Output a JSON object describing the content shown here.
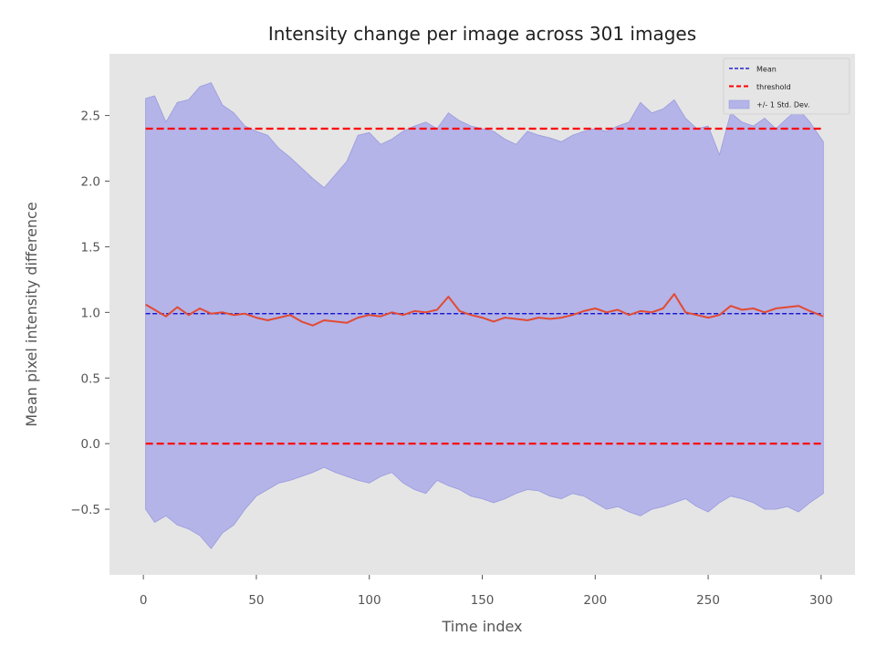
{
  "chart_data": {
    "type": "line",
    "title": "Intensity change per image across 301 images",
    "xlabel": "Time index",
    "ylabel": "Mean pixel intensity difference",
    "xlim": [
      -15,
      315
    ],
    "ylim": [
      -1.0,
      2.97
    ],
    "x_ticks": [
      0,
      50,
      100,
      150,
      200,
      250,
      300
    ],
    "y_ticks": [
      -0.5,
      0.0,
      0.5,
      1.0,
      1.5,
      2.0,
      2.5
    ],
    "x_tick_labels": [
      "0",
      "50",
      "100",
      "150",
      "200",
      "250",
      "300"
    ],
    "y_tick_labels": [
      "−0.5",
      "0.0",
      "0.5",
      "1.0",
      "1.5",
      "2.0",
      "2.5"
    ],
    "grid": false,
    "legend_position": "top-right",
    "legend": [
      {
        "label": "Mean",
        "style": "dashed-line",
        "color": "#0000cc"
      },
      {
        "label": "threshold",
        "style": "dashed-line",
        "color": "#ff0000"
      },
      {
        "label": "+/- 1 Std. Dev.",
        "style": "patch",
        "color": "#b4b4e8"
      }
    ],
    "mean": 0.99,
    "thresholds": [
      2.4,
      0.0
    ],
    "series": {
      "x": [
        1,
        5,
        10,
        15,
        20,
        25,
        30,
        35,
        40,
        45,
        50,
        55,
        60,
        65,
        70,
        75,
        80,
        85,
        90,
        95,
        100,
        105,
        110,
        115,
        120,
        125,
        130,
        135,
        140,
        145,
        150,
        155,
        160,
        165,
        170,
        175,
        180,
        185,
        190,
        195,
        200,
        205,
        210,
        215,
        220,
        225,
        230,
        235,
        240,
        245,
        250,
        255,
        260,
        265,
        270,
        275,
        280,
        285,
        290,
        295,
        301
      ],
      "y": [
        1.06,
        1.02,
        0.97,
        1.04,
        0.98,
        1.03,
        0.99,
        1.0,
        0.98,
        0.99,
        0.96,
        0.94,
        0.96,
        0.98,
        0.93,
        0.9,
        0.94,
        0.93,
        0.92,
        0.96,
        0.98,
        0.97,
        1.0,
        0.98,
        1.01,
        1.0,
        1.02,
        1.12,
        1.01,
        0.98,
        0.96,
        0.93,
        0.96,
        0.95,
        0.94,
        0.96,
        0.95,
        0.96,
        0.98,
        1.01,
        1.03,
        1.0,
        1.02,
        0.98,
        1.01,
        1.0,
        1.03,
        1.14,
        1.0,
        0.98,
        0.96,
        0.98,
        1.05,
        1.02,
        1.03,
        1.0,
        1.03,
        1.04,
        1.05,
        1.01,
        0.97
      ],
      "upper": [
        2.63,
        2.65,
        2.45,
        2.6,
        2.62,
        2.72,
        2.75,
        2.58,
        2.52,
        2.42,
        2.38,
        2.35,
        2.25,
        2.18,
        2.1,
        2.02,
        1.95,
        2.05,
        2.15,
        2.35,
        2.37,
        2.28,
        2.32,
        2.38,
        2.42,
        2.45,
        2.4,
        2.52,
        2.46,
        2.42,
        2.4,
        2.38,
        2.32,
        2.28,
        2.38,
        2.35,
        2.33,
        2.3,
        2.35,
        2.38,
        2.4,
        2.38,
        2.42,
        2.45,
        2.6,
        2.52,
        2.55,
        2.62,
        2.48,
        2.4,
        2.42,
        2.2,
        2.52,
        2.45,
        2.42,
        2.48,
        2.4,
        2.48,
        2.55,
        2.45,
        2.3
      ],
      "lower": [
        -0.5,
        -0.6,
        -0.55,
        -0.62,
        -0.65,
        -0.7,
        -0.8,
        -0.68,
        -0.62,
        -0.5,
        -0.4,
        -0.35,
        -0.3,
        -0.28,
        -0.25,
        -0.22,
        -0.18,
        -0.22,
        -0.25,
        -0.28,
        -0.3,
        -0.25,
        -0.22,
        -0.3,
        -0.35,
        -0.38,
        -0.28,
        -0.32,
        -0.35,
        -0.4,
        -0.42,
        -0.45,
        -0.42,
        -0.38,
        -0.35,
        -0.36,
        -0.4,
        -0.42,
        -0.38,
        -0.4,
        -0.45,
        -0.5,
        -0.48,
        -0.52,
        -0.55,
        -0.5,
        -0.48,
        -0.45,
        -0.42,
        -0.48,
        -0.52,
        -0.45,
        -0.4,
        -0.42,
        -0.45,
        -0.5,
        -0.5,
        -0.48,
        -0.52,
        -0.45,
        -0.38
      ]
    },
    "colors": {
      "axes_background": "#e5e5e5",
      "series_line": "#e24a33",
      "mean_line": "#0000cc",
      "threshold_line": "#ff0000",
      "band_fill": "#b4b4e8",
      "band_edge": "#9a9ae0"
    }
  }
}
